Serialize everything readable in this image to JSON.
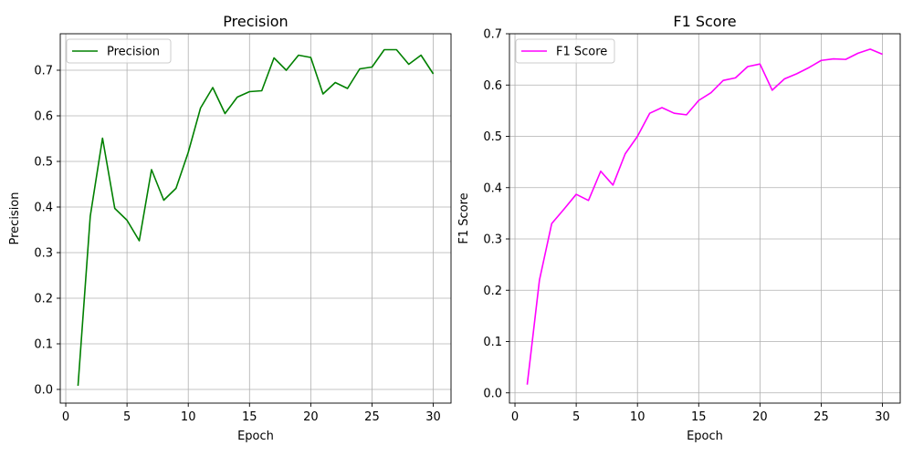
{
  "chart_data": [
    {
      "type": "line",
      "title": "Precision",
      "xlabel": "Epoch",
      "ylabel": "Precision",
      "xlim": [
        -0.45,
        31.45
      ],
      "ylim": [
        -0.03,
        0.78
      ],
      "xticks": [
        "0",
        "5",
        "10",
        "15",
        "20",
        "25",
        "30"
      ],
      "yticks": [
        "0.0",
        "0.1",
        "0.2",
        "0.3",
        "0.4",
        "0.5",
        "0.6",
        "0.7"
      ],
      "grid": true,
      "legend": "upper left",
      "x": [
        1,
        2,
        3,
        4,
        5,
        6,
        7,
        8,
        9,
        10,
        11,
        12,
        13,
        14,
        15,
        16,
        17,
        18,
        19,
        20,
        21,
        22,
        23,
        24,
        25,
        26,
        27,
        28,
        29,
        30
      ],
      "series": [
        {
          "name": "Precision",
          "color": "#008000",
          "values": [
            0.008,
            0.38,
            0.551,
            0.397,
            0.371,
            0.326,
            0.482,
            0.415,
            0.441,
            0.52,
            0.617,
            0.662,
            0.605,
            0.641,
            0.653,
            0.655,
            0.727,
            0.7,
            0.733,
            0.728,
            0.648,
            0.673,
            0.66,
            0.703,
            0.707,
            0.745,
            0.745,
            0.713,
            0.733,
            0.692
          ]
        }
      ]
    },
    {
      "type": "line",
      "title": "F1 Score",
      "xlabel": "Epoch",
      "ylabel": "F1 Score",
      "xlim": [
        -0.45,
        31.45
      ],
      "ylim": [
        -0.02,
        0.7
      ],
      "xticks": [
        "0",
        "5",
        "10",
        "15",
        "20",
        "25",
        "30"
      ],
      "yticks": [
        "0.0",
        "0.1",
        "0.2",
        "0.3",
        "0.4",
        "0.5",
        "0.6",
        "0.7"
      ],
      "grid": true,
      "legend": "upper left",
      "x": [
        1,
        2,
        3,
        4,
        5,
        6,
        7,
        8,
        9,
        10,
        11,
        12,
        13,
        14,
        15,
        16,
        17,
        18,
        19,
        20,
        21,
        22,
        23,
        24,
        25,
        26,
        27,
        28,
        29,
        30
      ],
      "series": [
        {
          "name": "F1 Score",
          "color": "#ff00ff",
          "values": [
            0.016,
            0.22,
            0.33,
            0.358,
            0.387,
            0.375,
            0.432,
            0.405,
            0.466,
            0.5,
            0.545,
            0.556,
            0.545,
            0.542,
            0.57,
            0.585,
            0.609,
            0.614,
            0.636,
            0.641,
            0.59,
            0.612,
            0.622,
            0.634,
            0.648,
            0.651,
            0.65,
            0.662,
            0.67,
            0.66
          ]
        }
      ]
    }
  ]
}
